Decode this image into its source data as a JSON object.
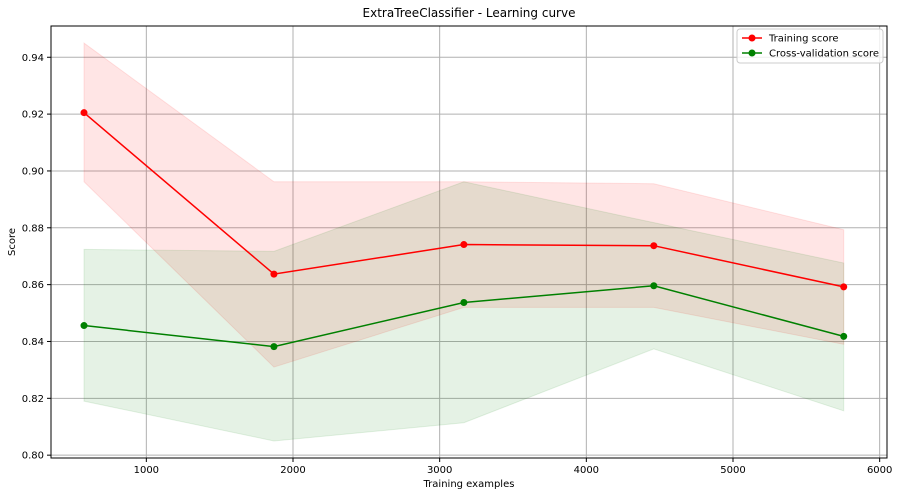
{
  "chart_data": {
    "type": "line",
    "title": "ExtraTreeClassifier - Learning curve",
    "xlabel": "Training examples",
    "ylabel": "Score",
    "xlim": [
      350,
      6050
    ],
    "ylim": [
      0.799,
      0.951
    ],
    "xticks": [
      1000,
      2000,
      3000,
      4000,
      5000,
      6000
    ],
    "xtick_labels": [
      "1000",
      "2000",
      "3000",
      "4000",
      "5000",
      "6000"
    ],
    "yticks": [
      0.8,
      0.82,
      0.84,
      0.86,
      0.88,
      0.9,
      0.92,
      0.94
    ],
    "ytick_labels": [
      "0.80",
      "0.82",
      "0.84",
      "0.86",
      "0.88",
      "0.90",
      "0.92",
      "0.94"
    ],
    "grid": true,
    "legend_position": "top-right",
    "x": [
      575,
      1870,
      3165,
      4460,
      5755
    ],
    "series": [
      {
        "name": "Training score",
        "color": "#ff0000",
        "band_color": "#ff0000",
        "values": [
          0.9205,
          0.8637,
          0.8741,
          0.8737,
          0.8592
        ],
        "band_upper": [
          0.945,
          0.8962,
          0.8962,
          0.8955,
          0.8793
        ],
        "band_lower": [
          0.8962,
          0.831,
          0.852,
          0.852,
          0.839
        ]
      },
      {
        "name": "Cross-validation score",
        "color": "#008000",
        "band_color": "#008000",
        "values": [
          0.8456,
          0.8382,
          0.8537,
          0.8596,
          0.8418
        ],
        "band_upper": [
          0.8724,
          0.8717,
          0.8962,
          0.8818,
          0.8676
        ],
        "band_lower": [
          0.819,
          0.805,
          0.8114,
          0.8374,
          0.8156
        ]
      }
    ]
  }
}
